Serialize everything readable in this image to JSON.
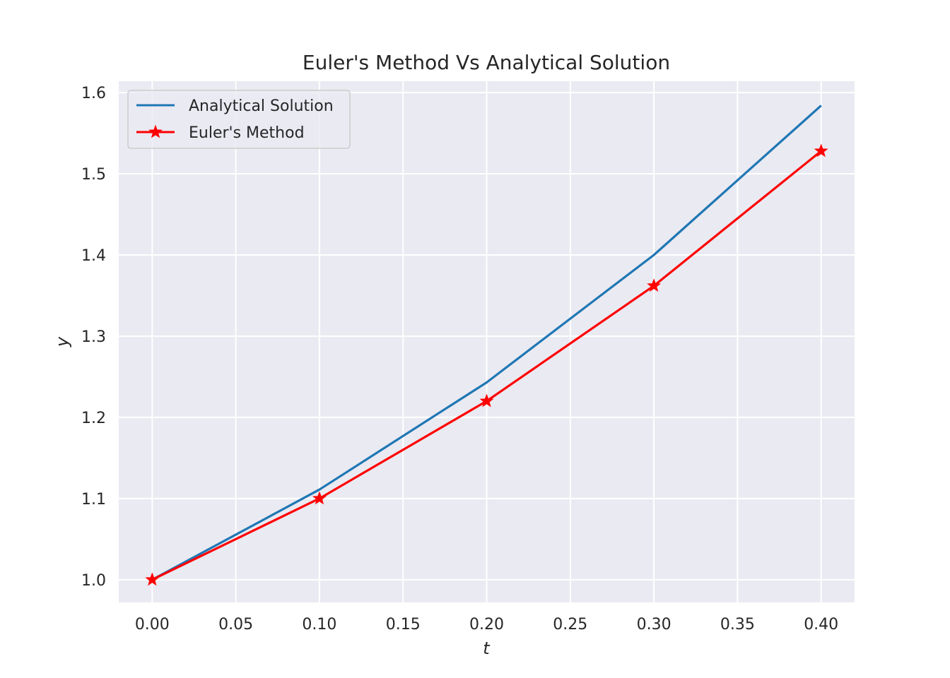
{
  "chart_data": {
    "type": "line",
    "title": "Euler's Method Vs Analytical Solution",
    "xlabel": "t",
    "ylabel": "y",
    "xlim": [
      -0.02,
      0.42
    ],
    "ylim": [
      0.972,
      1.614
    ],
    "xticks": [
      0.0,
      0.05,
      0.1,
      0.15,
      0.2,
      0.25,
      0.3,
      0.35,
      0.4
    ],
    "xtick_labels": [
      "0.00",
      "0.05",
      "0.10",
      "0.15",
      "0.20",
      "0.25",
      "0.30",
      "0.35",
      "0.40"
    ],
    "yticks": [
      1.0,
      1.1,
      1.2,
      1.3,
      1.4,
      1.5,
      1.6
    ],
    "ytick_labels": [
      "1.0",
      "1.1",
      "1.2",
      "1.3",
      "1.4",
      "1.5",
      "1.6"
    ],
    "grid": true,
    "legend_position": "top-left",
    "series": [
      {
        "name": "Analytical Solution",
        "color": "#1f77b4",
        "marker": "none",
        "x": [
          0.0,
          0.1,
          0.2,
          0.3,
          0.4
        ],
        "y": [
          1.0,
          1.111,
          1.243,
          1.4,
          1.584
        ]
      },
      {
        "name": "Euler's Method",
        "color": "#ff0000",
        "marker": "star",
        "x": [
          0.0,
          0.1,
          0.2,
          0.3,
          0.4
        ],
        "y": [
          1.0,
          1.1,
          1.22,
          1.362,
          1.528
        ]
      }
    ]
  }
}
